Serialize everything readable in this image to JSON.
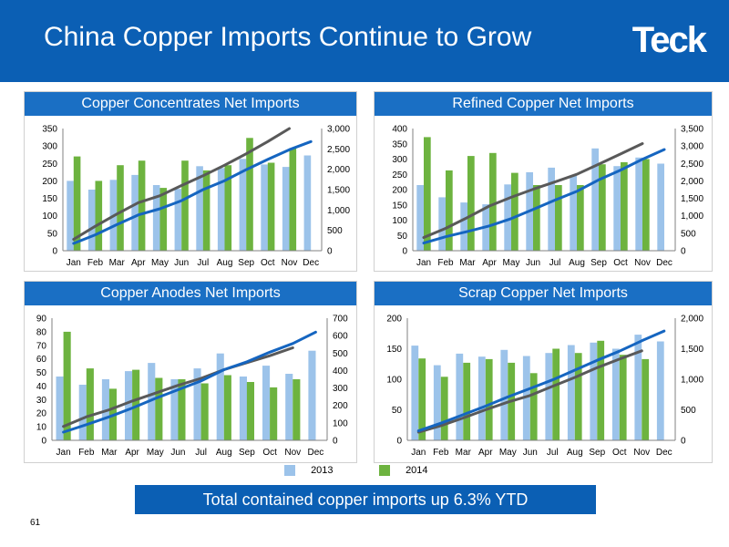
{
  "header": {
    "title": "China Copper Imports Continue to Grow",
    "logo": "Teck"
  },
  "colors": {
    "header_bg": "#0b5fb4",
    "bar_2013": "#9cc3ea",
    "bar_2014": "#6db33f",
    "line_dark": "#595959",
    "line_blue": "#1565c0"
  },
  "legend": {
    "items": [
      {
        "label": "2013",
        "color": "#9cc3ea"
      },
      {
        "label": "2014",
        "color": "#6db33f"
      }
    ]
  },
  "footer": {
    "banner": "Total contained copper imports up 6.3% YTD",
    "page_number": "61"
  },
  "chart_data": [
    {
      "type": "bar",
      "title": "Copper Concentrates Net Imports",
      "categories": [
        "Jan",
        "Feb",
        "Mar",
        "Apr",
        "May",
        "Jun",
        "Jul",
        "Aug",
        "Sep",
        "Oct",
        "Nov",
        "Dec"
      ],
      "ylim": [
        0,
        350
      ],
      "yticks": [
        0,
        50,
        100,
        150,
        200,
        250,
        300,
        350
      ],
      "y2lim": [
        0,
        3000
      ],
      "y2ticks": [
        0,
        500,
        1000,
        1500,
        2000,
        2500,
        3000
      ],
      "y2tick_labels": [
        "0",
        "500",
        "1,000",
        "1,500",
        "2,000",
        "2,500",
        "3,000"
      ],
      "series": [
        {
          "name": "2013",
          "kind": "bar",
          "values": [
            200,
            175,
            203,
            217,
            188,
            177,
            242,
            237,
            263,
            247,
            240,
            273
          ]
        },
        {
          "name": "2014",
          "kind": "bar",
          "values": [
            270,
            200,
            245,
            258,
            180,
            258,
            230,
            245,
            323,
            252,
            293,
            null
          ]
        }
      ],
      "cumulative_lines": [
        {
          "color": "dark",
          "axis": "right",
          "values": [
            280,
            600,
            900,
            1180,
            1350,
            1600,
            1840,
            2100,
            2380,
            2680,
            3000
          ]
        },
        {
          "color": "blue",
          "axis": "right",
          "values": [
            180,
            390,
            640,
            880,
            1030,
            1230,
            1500,
            1720,
            1990,
            2240,
            2480,
            2680
          ]
        }
      ]
    },
    {
      "type": "bar",
      "title": "Refined Copper Net Imports",
      "categories": [
        "Jan",
        "Feb",
        "Mar",
        "Apr",
        "May",
        "Jun",
        "Jul",
        "Aug",
        "Sep",
        "Oct",
        "Nov",
        "Dec"
      ],
      "ylim": [
        0,
        400
      ],
      "yticks": [
        0,
        50,
        100,
        150,
        200,
        250,
        300,
        350,
        400
      ],
      "y2lim": [
        0,
        3500
      ],
      "y2ticks": [
        0,
        500,
        1000,
        1500,
        2000,
        2500,
        3000,
        3500
      ],
      "y2tick_labels": [
        "0",
        "500",
        "1,000",
        "1,500",
        "2,000",
        "2,500",
        "3,000",
        "3,500"
      ],
      "series": [
        {
          "name": "2013",
          "kind": "bar",
          "values": [
            215,
            175,
            158,
            152,
            217,
            257,
            272,
            245,
            335,
            277,
            305,
            285
          ]
        },
        {
          "name": "2014",
          "kind": "bar",
          "values": [
            372,
            263,
            310,
            320,
            255,
            215,
            215,
            215,
            283,
            290,
            300,
            null
          ]
        }
      ],
      "cumulative_lines": [
        {
          "color": "dark",
          "axis": "right",
          "values": [
            380,
            640,
            950,
            1280,
            1530,
            1760,
            1970,
            2190,
            2480,
            2770,
            3070
          ]
        },
        {
          "color": "blue",
          "axis": "right",
          "values": [
            220,
            400,
            550,
            710,
            920,
            1180,
            1450,
            1700,
            2030,
            2310,
            2620,
            2900
          ]
        }
      ]
    },
    {
      "type": "bar",
      "title": "Copper Anodes Net Imports",
      "categories": [
        "Jan",
        "Feb",
        "Mar",
        "Apr",
        "May",
        "Jun",
        "Jul",
        "Aug",
        "Sep",
        "Oct",
        "Nov",
        "Dec"
      ],
      "ylim": [
        0,
        90
      ],
      "yticks": [
        0,
        10,
        20,
        30,
        40,
        50,
        60,
        70,
        80,
        90
      ],
      "y2lim": [
        0,
        700
      ],
      "y2ticks": [
        0,
        100,
        200,
        300,
        400,
        500,
        600,
        700
      ],
      "y2tick_labels": [
        "0",
        "100",
        "200",
        "300",
        "400",
        "500",
        "600",
        "700"
      ],
      "series": [
        {
          "name": "2013",
          "kind": "bar",
          "values": [
            47,
            41,
            45,
            51,
            57,
            45,
            53,
            64,
            47,
            55,
            49,
            66
          ]
        },
        {
          "name": "2014",
          "kind": "bar",
          "values": [
            80,
            53,
            38,
            52,
            46,
            45,
            42,
            48,
            43,
            39,
            45,
            null
          ]
        }
      ],
      "cumulative_lines": [
        {
          "color": "dark",
          "axis": "right",
          "values": [
            80,
            135,
            175,
            225,
            270,
            315,
            355,
            405,
            445,
            485,
            530
          ]
        },
        {
          "color": "blue",
          "axis": "right",
          "values": [
            47,
            90,
            135,
            185,
            240,
            290,
            340,
            405,
            450,
            505,
            555,
            620
          ]
        }
      ]
    },
    {
      "type": "bar",
      "title": "Scrap Copper Net Imports",
      "categories": [
        "Jan",
        "Feb",
        "Mar",
        "Apr",
        "May",
        "Jun",
        "Jul",
        "Aug",
        "Sep",
        "Oct",
        "Nov",
        "Dec"
      ],
      "ylim": [
        0,
        200
      ],
      "yticks": [
        0,
        50,
        100,
        150,
        200
      ],
      "y2lim": [
        0,
        2000
      ],
      "y2ticks": [
        0,
        500,
        1000,
        1500,
        2000
      ],
      "y2tick_labels": [
        "0",
        "500",
        "1,000",
        "1,500",
        "2,000"
      ],
      "series": [
        {
          "name": "2013",
          "kind": "bar",
          "values": [
            155,
            123,
            142,
            137,
            148,
            138,
            143,
            156,
            160,
            150,
            173,
            162
          ]
        },
        {
          "name": "2014",
          "kind": "bar",
          "values": [
            134,
            104,
            127,
            133,
            127,
            110,
            150,
            143,
            163,
            140,
            133,
            null
          ]
        }
      ],
      "cumulative_lines": [
        {
          "color": "dark",
          "axis": "right",
          "values": [
            134,
            240,
            365,
            500,
            625,
            735,
            885,
            1030,
            1190,
            1330,
            1465
          ]
        },
        {
          "color": "blue",
          "axis": "right",
          "values": [
            155,
            280,
            420,
            560,
            710,
            850,
            990,
            1150,
            1310,
            1460,
            1630,
            1790
          ]
        }
      ]
    }
  ]
}
